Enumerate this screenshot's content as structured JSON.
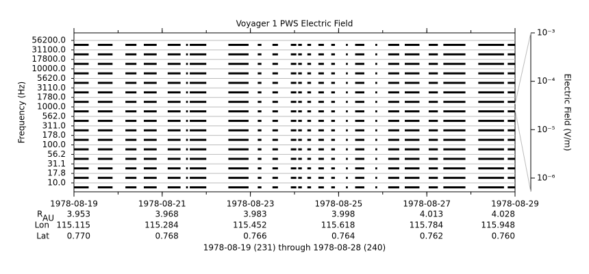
{
  "chart_data": {
    "type": "spectrogram",
    "title": "Voyager 1 PWS Electric Field",
    "y_label": "Frequency (Hz)",
    "y2_label": "Electric Field (V/m)",
    "footer": "1978-08-19 (231) through 1978-08-28 (240)",
    "categories": [
      "10.0",
      "17.8",
      "31.1",
      "56.2",
      "100.0",
      "178.0",
      "311.0",
      "562.0",
      "1000.0",
      "1780.0",
      "3110.0",
      "5620.0",
      "10000.0",
      "17800.0",
      "31100.0",
      "56200.0"
    ],
    "xlim": [
      "1978-08-19",
      "1978-08-29"
    ],
    "xticks": [
      "1978-08-19",
      "1978-08-21",
      "1978-08-23",
      "1978-08-25",
      "1978-08-27",
      "1978-08-29"
    ],
    "y2lim": [
      5.2e-07,
      0.001
    ],
    "y2ticks": [
      {
        "value": 0.001,
        "label": "10⁻³"
      },
      {
        "value": 0.0001,
        "label": "10⁻⁴"
      },
      {
        "value": 1e-05,
        "label": "10⁻⁵"
      },
      {
        "value": 1e-06,
        "label": "10⁻⁶"
      }
    ],
    "color": "#000000",
    "grid": true,
    "segments": [
      {
        "start": "1978-08-19T00:00",
        "end": "1978-08-19T08:00"
      },
      {
        "start": "1978-08-19T13:00",
        "end": "1978-08-19T21:00"
      },
      {
        "start": "1978-08-20T04:00",
        "end": "1978-08-20T10:00"
      },
      {
        "start": "1978-08-20T14:00",
        "end": "1978-08-20T21:00"
      },
      {
        "start": "1978-08-21T03:00",
        "end": "1978-08-21T10:00"
      },
      {
        "start": "1978-08-21T13:00",
        "end": "1978-08-21T14:00"
      },
      {
        "start": "1978-08-21T15:00",
        "end": "1978-08-22T00:00"
      },
      {
        "start": "1978-08-22T12:00",
        "end": "1978-08-22T23:00"
      },
      {
        "start": "1978-08-23T04:00",
        "end": "1978-08-23T06:00"
      },
      {
        "start": "1978-08-23T12:00",
        "end": "1978-08-23T15:00"
      },
      {
        "start": "1978-08-23T22:00",
        "end": "1978-08-24T01:00"
      },
      {
        "start": "1978-08-24T02:00",
        "end": "1978-08-24T04:00"
      },
      {
        "start": "1978-08-24T07:00",
        "end": "1978-08-24T09:00"
      },
      {
        "start": "1978-08-24T13:00",
        "end": "1978-08-24T16:00"
      },
      {
        "start": "1978-08-24T20:00",
        "end": "1978-08-24T22:00"
      },
      {
        "start": "1978-08-25T04:00",
        "end": "1978-08-25T05:00"
      },
      {
        "start": "1978-08-25T09:00",
        "end": "1978-08-25T14:00"
      },
      {
        "start": "1978-08-25T20:00",
        "end": "1978-08-25T21:00"
      },
      {
        "start": "1978-08-26T03:00",
        "end": "1978-08-26T09:00"
      },
      {
        "start": "1978-08-26T12:00",
        "end": "1978-08-26T20:00"
      },
      {
        "start": "1978-08-27T01:00",
        "end": "1978-08-27T06:00"
      },
      {
        "start": "1978-08-27T09:00",
        "end": "1978-08-27T21:00"
      },
      {
        "start": "1978-08-28T04:00",
        "end": "1978-08-28T18:00"
      },
      {
        "start": "1978-08-28T20:00",
        "end": "1978-08-29T00:00"
      }
    ],
    "ephemeris": [
      {
        "label": "R",
        "sub": "AU",
        "values": [
          "3.953",
          "3.968",
          "3.983",
          "3.998",
          "4.013",
          "4.028"
        ]
      },
      {
        "label": "Lon",
        "values": [
          "115.115",
          "115.284",
          "115.452",
          "115.618",
          "115.784",
          "115.948"
        ]
      },
      {
        "label": "Lat",
        "values": [
          "0.770",
          "0.768",
          "0.766",
          "0.764",
          "0.762",
          "0.760"
        ]
      }
    ]
  }
}
